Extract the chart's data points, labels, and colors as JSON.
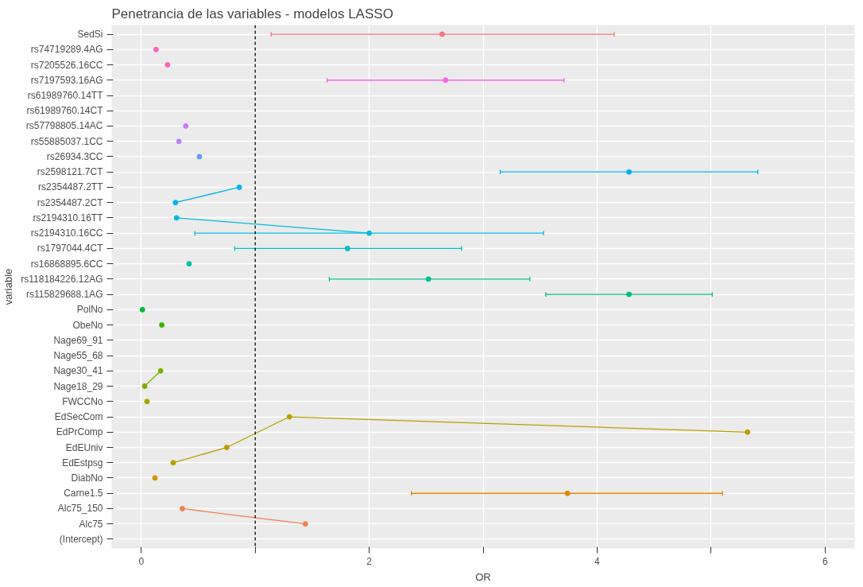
{
  "chart_data": {
    "type": "scatter",
    "title": "Penetrancia de las variables - modelos LASSO",
    "xlabel": "OR",
    "ylabel": "variable",
    "orientation": "horizontal",
    "marker": "circle",
    "grid": true,
    "categories": [
      "SedSi",
      "rs74719289.4AG",
      "rs7205526.16CC",
      "rs7197593.16AG",
      "rs61989760.14TT",
      "rs61989760.14CT",
      "rs57798805.14AC",
      "rs55885037.1CC",
      "rs26934.3CC",
      "rs2598121.7CT",
      "rs2354487.2TT",
      "rs2354487.2CT",
      "rs2194310.16TT",
      "rs2194310.16CC",
      "rs1797044.4CT",
      "rs16868895.6CC",
      "rs118184226.12AG",
      "rs115829688.1AG",
      "PolNo",
      "ObeNo",
      "Nage69_91",
      "Nage55_68",
      "Nage30_41",
      "Nage18_29",
      "FWCCNo",
      "EdSecCom",
      "EdPrComp",
      "EdEUniv",
      "EdEstpsg",
      "DiabNo",
      "Carne1.5",
      "Alc75_150",
      "Alc75",
      "(Intercept)"
    ],
    "xlim": [
      -0.26,
      6.26
    ],
    "xticks": [
      0,
      {
        "value": 1,
        "label": null
      },
      2,
      {
        "value": 3,
        "label": null
      },
      4,
      {
        "value": 5,
        "label": null
      },
      6
    ],
    "ref_lines": [
      {
        "axis": "x",
        "value": 1,
        "color": "#000000",
        "line_style": "dashed"
      }
    ],
    "series": [
      {
        "colors": [
          "#fc717f",
          "#ff61c3",
          "#ff62bc",
          "#f564e3",
          null,
          null,
          "#c77cff",
          "#b983ff",
          "#619cff",
          "#00b0f6",
          null,
          null,
          null,
          null,
          "#00bfc4",
          "#00c1a3",
          "#00c08b",
          "#00bf7d",
          "#00ba38",
          "#39b600",
          null,
          null,
          null,
          null,
          "#a3a500",
          null,
          null,
          null,
          null,
          "#d39200",
          "#e58700",
          null,
          null,
          null
        ],
        "values": [
          2.64,
          0.13,
          0.23,
          2.67,
          null,
          null,
          0.39,
          0.33,
          0.51,
          4.28,
          null,
          null,
          null,
          null,
          1.81,
          0.42,
          2.52,
          4.28,
          0.01,
          0.18,
          null,
          null,
          null,
          null,
          0.05,
          null,
          null,
          null,
          null,
          0.12,
          3.74,
          null,
          null,
          null
        ],
        "errors": [
          [
            1.14,
            4.15
          ],
          null,
          null,
          [
            1.63,
            3.71
          ],
          null,
          null,
          null,
          null,
          null,
          [
            3.15,
            5.41
          ],
          null,
          null,
          null,
          null,
          [
            0.82,
            2.81
          ],
          null,
          [
            1.65,
            3.41
          ],
          [
            3.55,
            5.01
          ],
          null,
          null,
          null,
          null,
          null,
          null,
          null,
          null,
          null,
          null,
          null,
          null,
          [
            2.37,
            5.1
          ],
          null,
          null,
          null
        ]
      },
      {
        "type": "line",
        "color": "#00b4ef",
        "values": [
          null,
          null,
          null,
          null,
          null,
          null,
          null,
          null,
          null,
          null,
          0.86,
          0.3,
          null,
          null,
          null,
          null,
          null,
          null,
          null,
          null,
          null,
          null,
          null,
          null,
          null,
          null,
          null,
          null,
          null,
          null,
          null,
          null,
          null,
          null
        ]
      },
      {
        "type": "line",
        "color": "#00bbdb",
        "values": [
          null,
          null,
          null,
          null,
          null,
          null,
          null,
          null,
          null,
          null,
          null,
          null,
          0.31,
          2.0,
          null,
          null,
          null,
          null,
          null,
          null,
          null,
          null,
          null,
          null,
          null,
          null,
          null,
          null,
          null,
          null,
          null,
          null,
          null,
          null
        ],
        "errors": [
          null,
          null,
          null,
          null,
          null,
          null,
          null,
          null,
          null,
          null,
          null,
          null,
          null,
          [
            0.47,
            3.53
          ],
          null,
          null,
          null,
          null,
          null,
          null,
          null,
          null,
          null,
          null,
          null,
          null,
          null,
          null,
          null,
          null,
          null,
          null,
          null,
          null
        ]
      },
      {
        "type": "line",
        "color": "#7cae00",
        "values": [
          null,
          null,
          null,
          null,
          null,
          null,
          null,
          null,
          null,
          null,
          null,
          null,
          null,
          null,
          null,
          null,
          null,
          null,
          null,
          null,
          null,
          null,
          0.17,
          0.03,
          null,
          null,
          null,
          null,
          null,
          null,
          null,
          null,
          null,
          null
        ]
      },
      {
        "type": "line",
        "color": "#b79f00",
        "values": [
          null,
          null,
          null,
          null,
          null,
          null,
          null,
          null,
          null,
          null,
          null,
          null,
          null,
          null,
          null,
          null,
          null,
          null,
          null,
          null,
          null,
          null,
          null,
          null,
          null,
          1.3,
          5.32,
          0.75,
          0.28,
          null,
          null,
          null,
          null,
          null
        ]
      },
      {
        "type": "line",
        "color": "#f0804d",
        "values": [
          null,
          null,
          null,
          null,
          null,
          null,
          null,
          null,
          null,
          null,
          null,
          null,
          null,
          null,
          null,
          null,
          null,
          null,
          null,
          null,
          null,
          null,
          null,
          null,
          null,
          null,
          null,
          null,
          null,
          null,
          null,
          0.36,
          1.44,
          null
        ]
      }
    ]
  }
}
